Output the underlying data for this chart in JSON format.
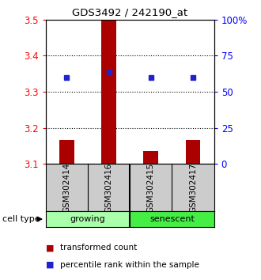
{
  "title": "GDS3492 / 242190_at",
  "samples": [
    "GSM302414",
    "GSM302416",
    "GSM302415",
    "GSM302417"
  ],
  "bar_values": [
    3.165,
    3.5,
    3.135,
    3.165
  ],
  "bar_base": 3.1,
  "blue_values": [
    3.34,
    3.355,
    3.34,
    3.34
  ],
  "ylim": [
    3.1,
    3.5
  ],
  "yticks_left": [
    3.1,
    3.2,
    3.3,
    3.4,
    3.5
  ],
  "ytick_left_labels": [
    "3.1",
    "3.2",
    "3.3",
    "3.4",
    "3.5"
  ],
  "yticks_right": [
    0,
    25,
    50,
    75,
    100
  ],
  "ytick_right_labels": [
    "0",
    "25",
    "50",
    "75",
    "100%"
  ],
  "bar_color": "#aa0000",
  "blue_color": "#2222cc",
  "group1_label": "growing",
  "group2_label": "senescent",
  "group1_color": "#aaffaa",
  "group2_color": "#44ee44",
  "group_box_color": "#cccccc",
  "legend_tc": "transformed count",
  "legend_pr": "percentile rank within the sample",
  "cell_type_label": "cell type",
  "dotted_yticks": [
    3.2,
    3.3,
    3.4
  ],
  "bar_width": 0.35,
  "background_color": "#ffffff"
}
